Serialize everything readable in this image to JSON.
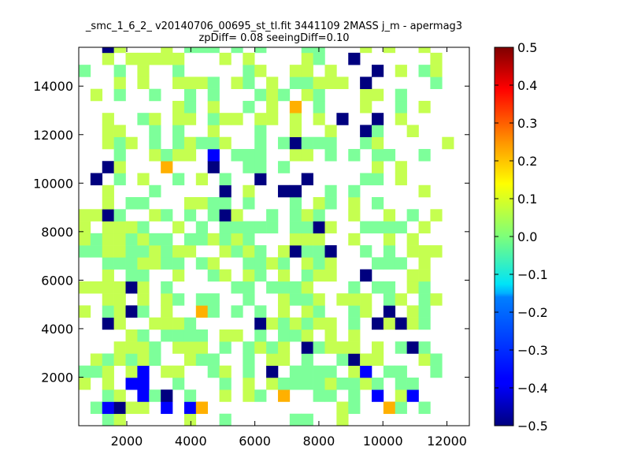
{
  "chart_data": {
    "type": "heatmap",
    "title_lines": [
      "_smc_1_6_2_ v20140706_00695_st_tl.fit 3441109 2MASS j_m - apermag3",
      "zpDiff= 0.08 seeingDiff=0.10"
    ],
    "xlabel": "",
    "ylabel": "",
    "xlim": [
      500,
      12700
    ],
    "ylim": [
      0,
      15600
    ],
    "xticks": [
      2000,
      4000,
      6000,
      8000,
      10000,
      12000
    ],
    "yticks": [
      2000,
      4000,
      6000,
      8000,
      10000,
      12000,
      14000
    ],
    "colorbar": {
      "range": [
        -0.5,
        0.5
      ],
      "ticks": [
        "0.5",
        "0.4",
        "0.3",
        "0.2",
        "0.1",
        "0.0",
        "−0.1",
        "−0.2",
        "−0.3",
        "−0.4",
        "−0.5"
      ],
      "colormap": "jet"
    },
    "bin": {
      "dx": 366,
      "dy": 496,
      "x0": 500,
      "y0": 0
    },
    "rows": [
      "..01.....1..0.....00..1.........",
      ".05D11.5.52...........10..20.0..",
      "..01.50D.0..1.10.2..00.0.5.15...",
      "1.1.55..0...0.1.1000010010.00...",
      "001.15.11..01.0.D.0000.15.00..0.",
      ".101010..100..0.11.0..0D11...10.",
      "...1110.111.0.0101.D0111.1.0D0..",
      "....10.0000.11.0.001.1.1.......",
      "..D1..1110.....D101011.0.D1D10..",
      "1.01D0.1..20.0.0.1.10..01.D.10..",
      "..11.1.10.00..0..1001.111.01.01.",
      "1111D1.0.....00.0001...0.00.10..",
      "..1.00..1..01.10.1.011..D...11..",
      "..0001100.01..0010.101...000.1..",
      "0011001011..1010.1D00D..0.0.111.",
      "10110100.001010...111..1..1.1...",
      "1.1110..1.0.00000.00D1..0000.1..",
      "11D0..10.0.0D1..0.010..1..1.0.1.",
      "..1.00...1100.0...0.10.1.0......",
      "..1...0.....D.1..DD..0.0.....1..",
      ".D.0.1..0.1.0..D...D....00.1....",
      "..D1...2...D..00.0.......1.1....",
      "...0..1011.5.000..11.0.0.00..0..",
      "..101.0.01001..0.0D000..01.....1",
      "..11..0.0..1...0..1..1..D0..1...",
      "..1..01.11.011.11.1.1.D..D.1....",
      "........10.1..0.1.2.0...1..0.1..",
      ".1.0..0..0.0...010.10...11.0....",
      "...1.1..1110.10.1.00111.D.....0.",
      "0..0.1..0.....01..11.1...D.1.01.",
      "..1.11111...1.1....10..D......1.",
      "..D1...1.000.0.0...00...1.1..1.."
    ]
  }
}
